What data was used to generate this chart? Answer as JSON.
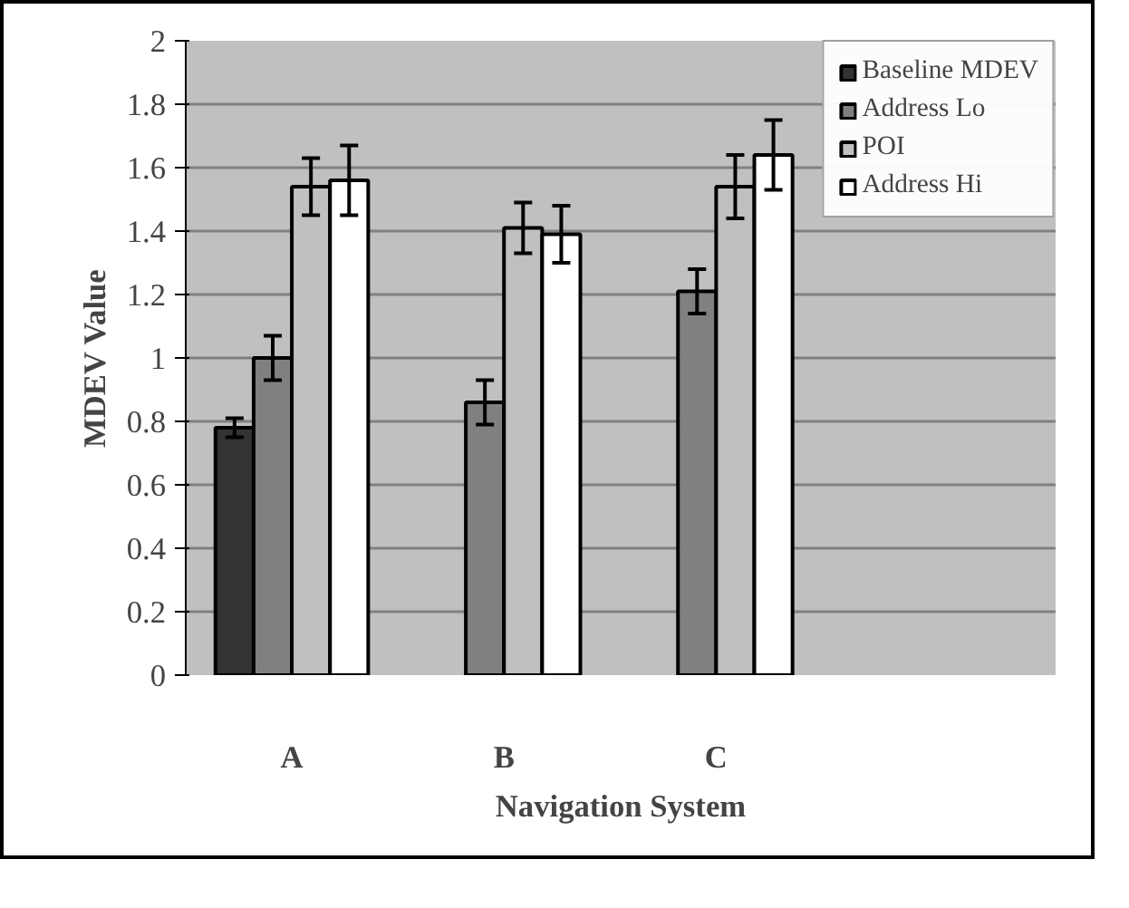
{
  "chart_data": {
    "type": "bar",
    "xlabel": "Navigation System",
    "ylabel": "MDEV Value",
    "categories": [
      "A",
      "B",
      "C"
    ],
    "series": [
      {
        "name": "Baseline MDEV",
        "color": "#333333",
        "values": [
          0.78,
          null,
          null
        ],
        "errors": [
          0.03,
          null,
          null
        ]
      },
      {
        "name": "Address Lo",
        "color": "#808080",
        "values": [
          1.0,
          0.86,
          1.21
        ],
        "errors": [
          0.07,
          0.07,
          0.07
        ]
      },
      {
        "name": "POI",
        "color": "#c0c0c0",
        "values": [
          1.54,
          1.41,
          1.54
        ],
        "errors": [
          0.09,
          0.08,
          0.1
        ]
      },
      {
        "name": "Address Hi",
        "color": "#ffffff",
        "values": [
          1.56,
          1.39,
          1.64
        ],
        "errors": [
          0.11,
          0.09,
          0.11
        ]
      }
    ],
    "ylim": [
      0,
      2
    ],
    "yticks": [
      0,
      0.2,
      0.4,
      0.6,
      0.8,
      1,
      1.2,
      1.4,
      1.6,
      1.8,
      2
    ],
    "grid": "y",
    "legend": "top right"
  }
}
